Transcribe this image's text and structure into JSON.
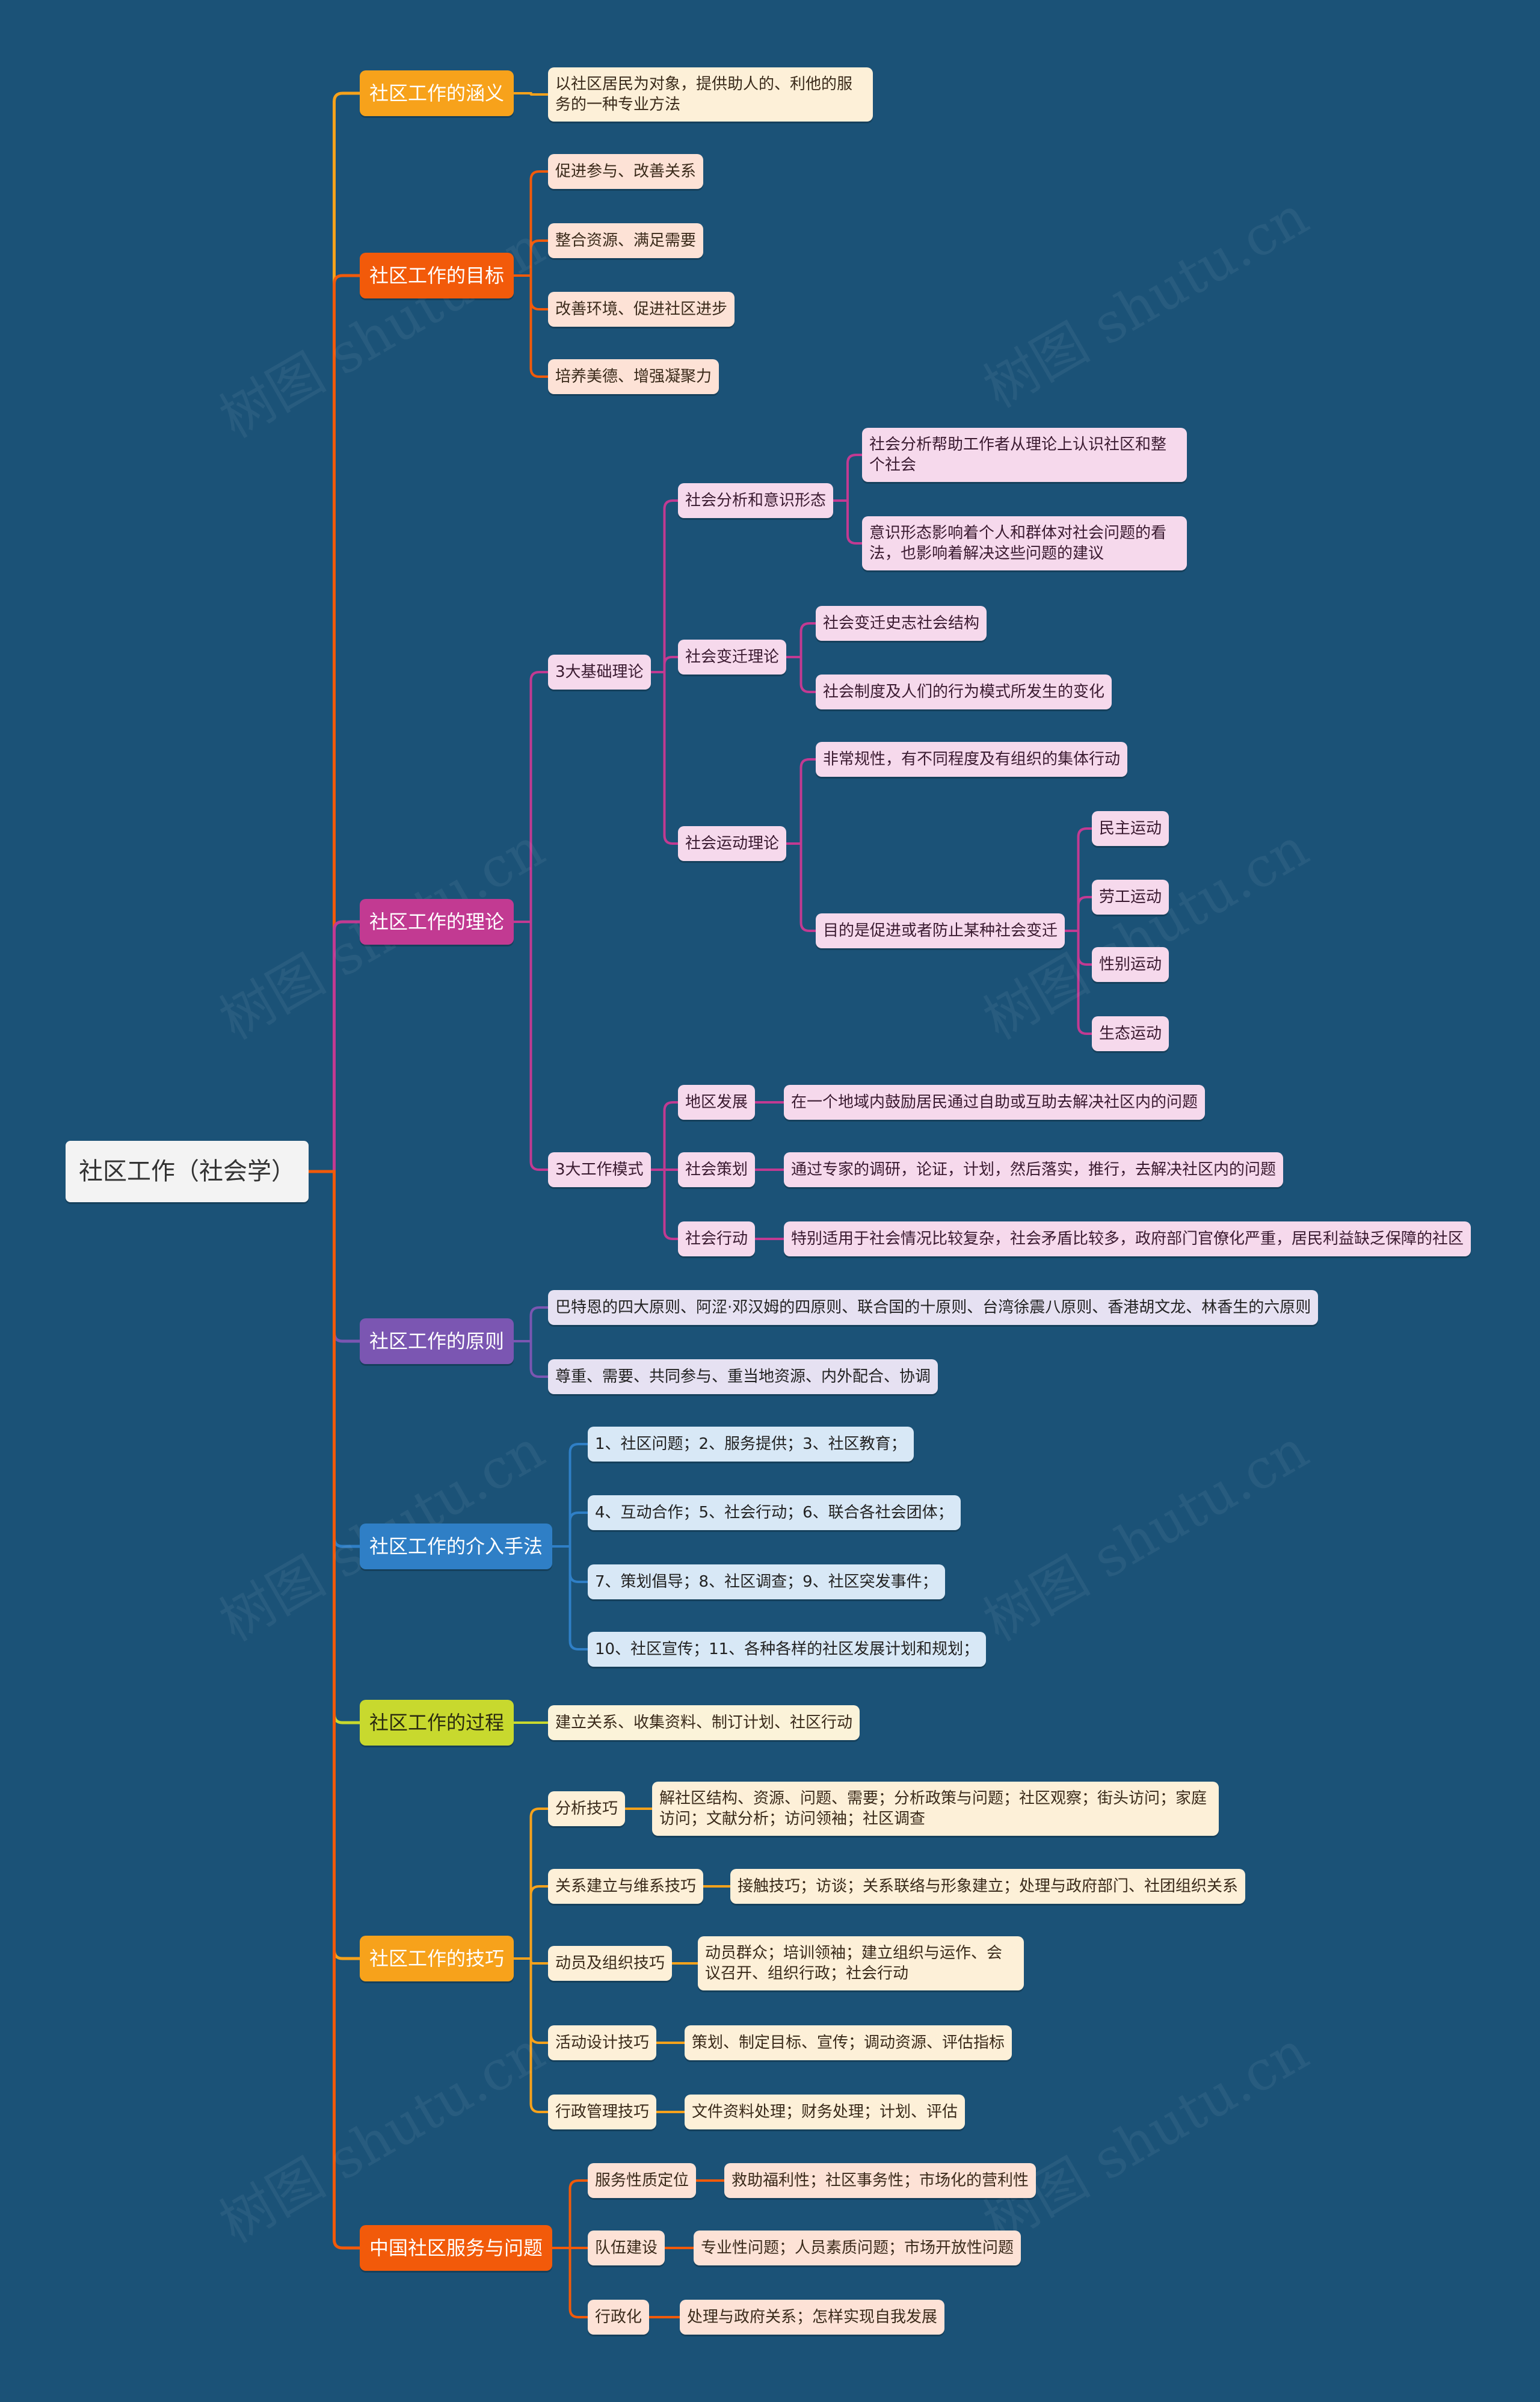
{
  "watermark": "树图 shutu.cn",
  "root": {
    "label": "社区工作（社会学）"
  },
  "branches": [
    {
      "label": "社区工作的涵义",
      "color": "#f7a21b",
      "children": [
        {
          "label": "以社区居民为对象，提供助人的、利他的服务的一种专业方法"
        }
      ]
    },
    {
      "label": "社区工作的目标",
      "color": "#f25a0a",
      "children": [
        {
          "label": "促进参与、改善关系"
        },
        {
          "label": "整合资源、满足需要"
        },
        {
          "label": "改善环境、促进社区进步"
        },
        {
          "label": "培养美德、增强凝聚力"
        }
      ]
    },
    {
      "label": "社区工作的理论",
      "color": "#c23a92",
      "children": [
        {
          "label": "3大基础理论",
          "children": [
            {
              "label": "社会分析和意识形态",
              "children": [
                {
                  "label": "社会分析帮助工作者从理论上认识社区和整个社会"
                },
                {
                  "label": "意识形态影响着个人和群体对社会问题的看法，也影响着解决这些问题的建议"
                }
              ]
            },
            {
              "label": "社会变迁理论",
              "children": [
                {
                  "label": "社会变迁史志社会结构"
                },
                {
                  "label": "社会制度及人们的行为模式所发生的变化"
                }
              ]
            },
            {
              "label": "社会运动理论",
              "children": [
                {
                  "label": "非常规性，有不同程度及有组织的集体行动"
                },
                {
                  "label": "目的是促进或者防止某种社会变迁",
                  "children": [
                    {
                      "label": "民主运动"
                    },
                    {
                      "label": "劳工运动"
                    },
                    {
                      "label": "性别运动"
                    },
                    {
                      "label": "生态运动"
                    }
                  ]
                }
              ]
            }
          ]
        },
        {
          "label": "3大工作模式",
          "children": [
            {
              "label": "地区发展",
              "children": [
                {
                  "label": "在一个地域内鼓励居民通过自助或互助去解决社区内的问题"
                }
              ]
            },
            {
              "label": "社会策划",
              "children": [
                {
                  "label": "通过专家的调研，论证，计划，然后落实，推行，去解决社区内的问题"
                }
              ]
            },
            {
              "label": "社会行动",
              "children": [
                {
                  "label": "特别适用于社会情况比较复杂，社会矛盾比较多，政府部门官僚化严重，居民利益缺乏保障的社区"
                }
              ]
            }
          ]
        }
      ]
    },
    {
      "label": "社区工作的原则",
      "color": "#7b56b2",
      "children": [
        {
          "label": "巴特恩的四大原则、阿涩·邓汉姆的四原则、联合国的十原则、台湾徐震八原则、香港胡文龙、林香生的六原则"
        },
        {
          "label": "尊重、需要、共同参与、重当地资源、内外配合、协调"
        }
      ]
    },
    {
      "label": "社区工作的介入手法",
      "color": "#2f7fc6",
      "children": [
        {
          "label": "1、社区问题；2、服务提供；3、社区教育；"
        },
        {
          "label": "4、互动合作；5、社会行动；6、联合各社会团体；"
        },
        {
          "label": "7、策划倡导；8、社区调查；9、社区突发事件；"
        },
        {
          "label": "10、社区宣传；11、各种各样的社区发展计划和规划；"
        }
      ]
    },
    {
      "label": "社区工作的过程",
      "color": "#c8d92e",
      "children": [
        {
          "label": "建立关系、收集资料、制订计划、社区行动"
        }
      ]
    },
    {
      "label": "社区工作的技巧",
      "color": "#f7a21b",
      "children": [
        {
          "label": "分析技巧",
          "children": [
            {
              "label": "解社区结构、资源、问题、需要；分析政策与问题；社区观察；街头访问；家庭访问；文献分析；访问领袖；社区调查"
            }
          ]
        },
        {
          "label": "关系建立与维系技巧",
          "children": [
            {
              "label": "接触技巧；访谈；关系联络与形象建立；处理与政府部门、社团组织关系"
            }
          ]
        },
        {
          "label": "动员及组织技巧",
          "children": [
            {
              "label": "动员群众；培训领袖；建立组织与运作、会议召开、组织行政；社会行动"
            }
          ]
        },
        {
          "label": "活动设计技巧",
          "children": [
            {
              "label": "策划、制定目标、宣传；调动资源、评估指标"
            }
          ]
        },
        {
          "label": "行政管理技巧",
          "children": [
            {
              "label": "文件资料处理；财务处理；计划、评估"
            }
          ]
        }
      ]
    },
    {
      "label": "中国社区服务与问题",
      "color": "#f25a0a",
      "children": [
        {
          "label": "服务性质定位",
          "children": [
            {
              "label": "救助福利性；社区事务性；市场化的营利性"
            }
          ]
        },
        {
          "label": "队伍建设",
          "children": [
            {
              "label": "专业性问题；人员素质问题；市场开放性问题"
            }
          ]
        },
        {
          "label": "行政化",
          "children": [
            {
              "label": "处理与政府关系；怎样实现自我发展"
            }
          ]
        }
      ]
    }
  ]
}
